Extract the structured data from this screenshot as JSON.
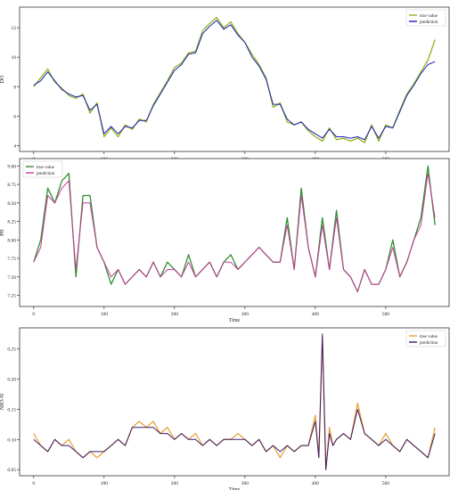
{
  "chart_data": [
    {
      "type": "line",
      "ylabel": "DO",
      "xlabel": "",
      "xlim": [
        -20,
        590
      ],
      "ylim": [
        3.6,
        13.4
      ],
      "xticks": [
        0,
        100,
        200,
        300,
        400,
        500
      ],
      "yticks": [
        4,
        6,
        8,
        10,
        12
      ],
      "legend_position": "top-right",
      "colors": {
        "true": "#8fb51f",
        "pred": "#1f1fb4"
      },
      "legend": [
        "true value",
        "prediction"
      ],
      "x": [
        0,
        10,
        20,
        30,
        40,
        50,
        60,
        70,
        80,
        90,
        100,
        110,
        120,
        130,
        140,
        150,
        160,
        170,
        180,
        190,
        200,
        210,
        220,
        230,
        240,
        250,
        260,
        270,
        280,
        290,
        300,
        310,
        320,
        330,
        340,
        350,
        360,
        370,
        380,
        390,
        400,
        410,
        420,
        430,
        440,
        450,
        460,
        470,
        480,
        490,
        500,
        510,
        520,
        530,
        540,
        550,
        560,
        570
      ],
      "series": [
        {
          "name": "true value",
          "values": [
            8.0,
            8.6,
            9.2,
            8.3,
            7.9,
            7.4,
            7.2,
            7.5,
            6.2,
            6.9,
            4.6,
            5.2,
            4.6,
            5.4,
            5.1,
            5.8,
            5.6,
            6.8,
            7.6,
            8.4,
            9.3,
            9.6,
            10.3,
            10.4,
            11.8,
            12.3,
            12.7,
            12.0,
            12.4,
            11.6,
            11.0,
            10.2,
            9.5,
            8.6,
            6.6,
            6.9,
            5.6,
            5.4,
            5.6,
            5.0,
            4.6,
            4.3,
            5.2,
            4.4,
            4.5,
            4.3,
            4.5,
            4.2,
            5.4,
            4.3,
            5.4,
            5.2,
            6.4,
            7.5,
            8.2,
            9.0,
            9.8,
            11.2
          ]
        },
        {
          "name": "prediction",
          "values": [
            8.1,
            8.4,
            9.0,
            8.4,
            7.8,
            7.5,
            7.3,
            7.4,
            6.4,
            6.8,
            4.8,
            5.3,
            4.8,
            5.3,
            5.2,
            5.7,
            5.7,
            6.7,
            7.5,
            8.3,
            9.1,
            9.5,
            10.2,
            10.3,
            11.6,
            12.1,
            12.5,
            11.9,
            12.2,
            11.5,
            11.0,
            10.0,
            9.4,
            8.5,
            6.8,
            6.8,
            5.8,
            5.4,
            5.6,
            5.1,
            4.8,
            4.5,
            5.1,
            4.6,
            4.6,
            4.5,
            4.6,
            4.4,
            5.3,
            4.5,
            5.3,
            5.2,
            6.3,
            7.4,
            8.1,
            8.9,
            9.5,
            9.7
          ]
        }
      ]
    },
    {
      "type": "line",
      "ylabel": "PH",
      "xlabel": "Time",
      "xlim": [
        -20,
        590
      ],
      "ylim": [
        7.1,
        9.1
      ],
      "xticks": [
        0,
        100,
        200,
        300,
        400,
        500
      ],
      "yticks": [
        7.25,
        7.5,
        7.75,
        8.0,
        8.25,
        8.5,
        8.75,
        9.0
      ],
      "tick_labels": [
        "7.25",
        "7.50",
        "7.75",
        "8.00",
        "8.25",
        "8.50",
        "8.75",
        "9.00"
      ],
      "legend_position": "top-left",
      "colors": {
        "true": "#2f8f2f",
        "pred": "#cc3aa0"
      },
      "legend": [
        "true value",
        "prediction"
      ],
      "x": [
        0,
        10,
        20,
        30,
        40,
        50,
        60,
        70,
        80,
        90,
        100,
        110,
        120,
        130,
        140,
        150,
        160,
        170,
        180,
        190,
        200,
        210,
        220,
        230,
        240,
        250,
        260,
        270,
        280,
        290,
        300,
        310,
        320,
        330,
        340,
        350,
        360,
        370,
        380,
        390,
        400,
        410,
        420,
        430,
        440,
        450,
        460,
        470,
        480,
        490,
        500,
        510,
        520,
        530,
        540,
        550,
        560,
        570
      ],
      "series": [
        {
          "name": "true value",
          "values": [
            7.7,
            8.0,
            8.7,
            8.5,
            8.8,
            8.9,
            7.5,
            8.6,
            8.6,
            7.9,
            7.7,
            7.4,
            7.6,
            7.4,
            7.5,
            7.6,
            7.5,
            7.7,
            7.5,
            7.7,
            7.6,
            7.5,
            7.8,
            7.5,
            7.6,
            7.7,
            7.5,
            7.7,
            7.8,
            7.6,
            7.7,
            7.8,
            7.9,
            7.8,
            7.7,
            7.7,
            8.3,
            7.6,
            8.7,
            7.9,
            7.5,
            8.3,
            7.6,
            8.4,
            7.6,
            7.5,
            7.3,
            7.6,
            7.4,
            7.4,
            7.6,
            8.0,
            7.5,
            7.7,
            8.0,
            8.3,
            9.0,
            8.2
          ]
        },
        {
          "name": "prediction",
          "values": [
            7.7,
            7.9,
            8.6,
            8.5,
            8.7,
            8.8,
            7.6,
            8.5,
            8.5,
            7.9,
            7.7,
            7.5,
            7.6,
            7.4,
            7.5,
            7.6,
            7.5,
            7.7,
            7.5,
            7.6,
            7.6,
            7.5,
            7.7,
            7.5,
            7.6,
            7.7,
            7.5,
            7.7,
            7.7,
            7.6,
            7.7,
            7.8,
            7.9,
            7.8,
            7.7,
            7.7,
            8.2,
            7.6,
            8.6,
            7.9,
            7.5,
            8.2,
            7.6,
            8.3,
            7.6,
            7.5,
            7.3,
            7.6,
            7.4,
            7.4,
            7.6,
            7.9,
            7.5,
            7.7,
            8.0,
            8.2,
            8.9,
            8.3
          ]
        }
      ]
    },
    {
      "type": "line",
      "ylabel": "NH3-N",
      "xlabel": "Time",
      "xlim": [
        -20,
        590
      ],
      "ylim": [
        0.04,
        0.285
      ],
      "xticks": [
        0,
        100,
        200,
        300,
        400,
        500
      ],
      "yticks": [
        0.05,
        0.1,
        0.15,
        0.2,
        0.25
      ],
      "tick_labels": [
        "0.05",
        "0.10",
        "0.15",
        "0.20",
        "0.25"
      ],
      "legend_position": "top-right",
      "colors": {
        "true": "#e8a23a",
        "pred": "#3a1a6e"
      },
      "legend": [
        "true value",
        "prediction"
      ],
      "x": [
        0,
        10,
        20,
        30,
        40,
        50,
        60,
        70,
        80,
        90,
        100,
        110,
        120,
        130,
        140,
        150,
        160,
        170,
        180,
        190,
        200,
        210,
        220,
        230,
        240,
        250,
        260,
        270,
        280,
        290,
        300,
        310,
        320,
        330,
        340,
        350,
        360,
        370,
        380,
        390,
        400,
        405,
        410,
        415,
        420,
        425,
        430,
        440,
        450,
        460,
        470,
        480,
        490,
        500,
        510,
        520,
        530,
        540,
        550,
        560,
        570
      ],
      "series": [
        {
          "name": "true value",
          "values": [
            0.11,
            0.09,
            0.08,
            0.1,
            0.09,
            0.1,
            0.08,
            0.07,
            0.08,
            0.07,
            0.08,
            0.09,
            0.1,
            0.09,
            0.12,
            0.13,
            0.12,
            0.13,
            0.11,
            0.12,
            0.1,
            0.11,
            0.1,
            0.11,
            0.09,
            0.1,
            0.09,
            0.1,
            0.1,
            0.11,
            0.1,
            0.09,
            0.1,
            0.08,
            0.09,
            0.07,
            0.09,
            0.08,
            0.09,
            0.09,
            0.14,
            0.07,
            0.27,
            0.05,
            0.12,
            0.09,
            0.1,
            0.11,
            0.1,
            0.16,
            0.11,
            0.1,
            0.09,
            0.11,
            0.09,
            0.08,
            0.1,
            0.09,
            0.08,
            0.07,
            0.12
          ]
        },
        {
          "name": "prediction",
          "values": [
            0.1,
            0.09,
            0.08,
            0.1,
            0.09,
            0.09,
            0.08,
            0.07,
            0.08,
            0.08,
            0.08,
            0.09,
            0.1,
            0.09,
            0.12,
            0.12,
            0.12,
            0.12,
            0.11,
            0.11,
            0.1,
            0.11,
            0.1,
            0.1,
            0.09,
            0.1,
            0.09,
            0.1,
            0.1,
            0.1,
            0.1,
            0.09,
            0.1,
            0.08,
            0.09,
            0.08,
            0.09,
            0.08,
            0.09,
            0.09,
            0.13,
            0.07,
            0.275,
            0.05,
            0.11,
            0.09,
            0.1,
            0.11,
            0.1,
            0.15,
            0.11,
            0.1,
            0.09,
            0.1,
            0.09,
            0.08,
            0.1,
            0.09,
            0.08,
            0.07,
            0.11
          ]
        }
      ]
    }
  ]
}
